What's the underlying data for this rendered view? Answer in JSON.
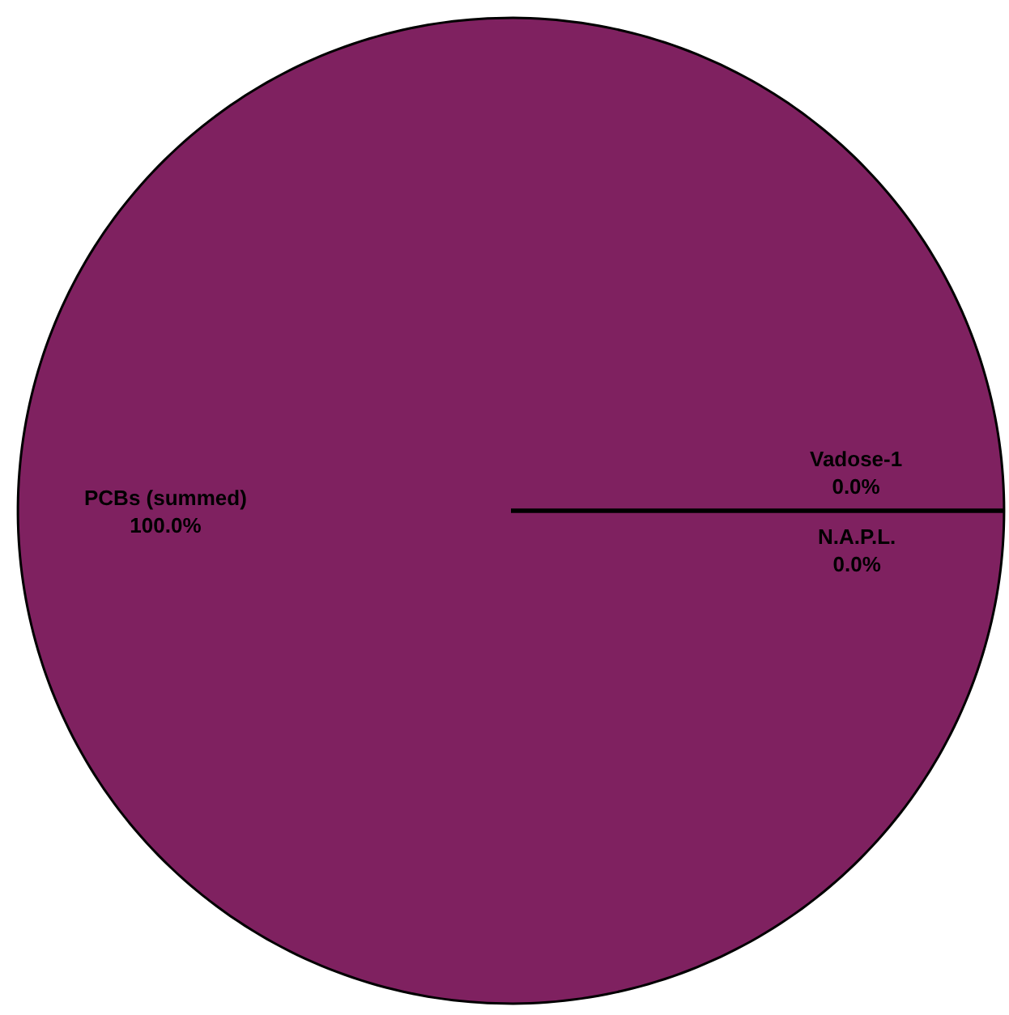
{
  "chart_data": {
    "type": "pie",
    "categories": [
      "PCBs (summed)",
      "Vadose-1",
      "N.A.P.L."
    ],
    "values": [
      100,
      0,
      0
    ],
    "colors": [
      "#7f2160",
      "#4472c4",
      "#ed7d31"
    ],
    "value_labels": [
      "100.0%",
      "0.0%",
      "0.0%"
    ],
    "legend": false
  }
}
